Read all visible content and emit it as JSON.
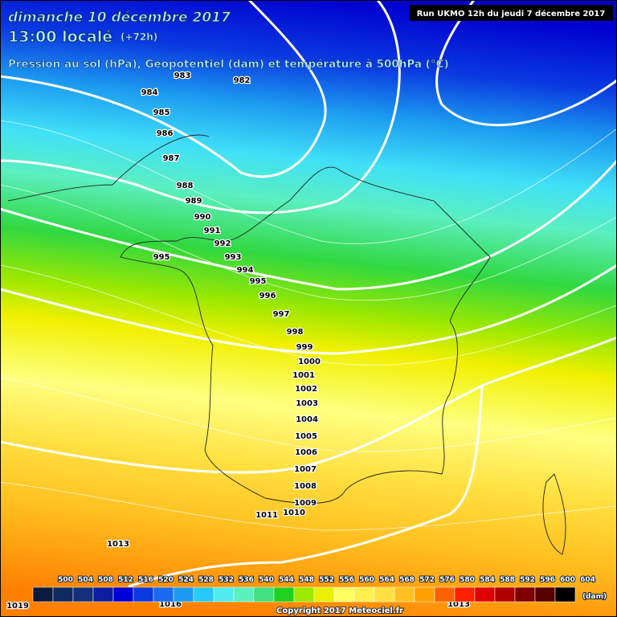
{
  "header": {
    "date": "dimanche 10 décembre 2017",
    "time": "13:00 localé",
    "lead": "(+72h)",
    "subtitle": "Pression au sol (hPa), Geopotentiel (dam) et température à 500hPa (°C)",
    "run": "Run UKMO 12h du jeudi 7 décembre 2017"
  },
  "isobar_labels": [
    983,
    982,
    984,
    985,
    986,
    987,
    988,
    989,
    990,
    991,
    992,
    995,
    993,
    994,
    995,
    996,
    997,
    998,
    999,
    1000,
    1001,
    1002,
    1003,
    1004,
    1005,
    1006,
    1007,
    1008,
    1009,
    1010,
    1011,
    1013,
    1019,
    1016,
    1013
  ],
  "legend": {
    "values": [
      500,
      504,
      508,
      512,
      516,
      520,
      524,
      528,
      532,
      536,
      540,
      544,
      548,
      552,
      556,
      560,
      564,
      568,
      572,
      576,
      580,
      584,
      588,
      592,
      596,
      600,
      604
    ],
    "colors": [
      "#0b1a40",
      "#0f2a60",
      "#13307a",
      "#0c1ea0",
      "#0000d8",
      "#0a3ae0",
      "#1a6af0",
      "#1c9cf0",
      "#28c8f8",
      "#50ecf0",
      "#5af0c0",
      "#40e080",
      "#20d020",
      "#9ce800",
      "#e8f000",
      "#ffff60",
      "#fff050",
      "#ffe040",
      "#ffc020",
      "#ffa000",
      "#ff6000",
      "#ff2000",
      "#e00000",
      "#b00000",
      "#800000",
      "#580000",
      "#000000"
    ],
    "unit": "(dam)"
  },
  "footer": {
    "copyright": "Copyright 2017 Meteociel.fr"
  }
}
